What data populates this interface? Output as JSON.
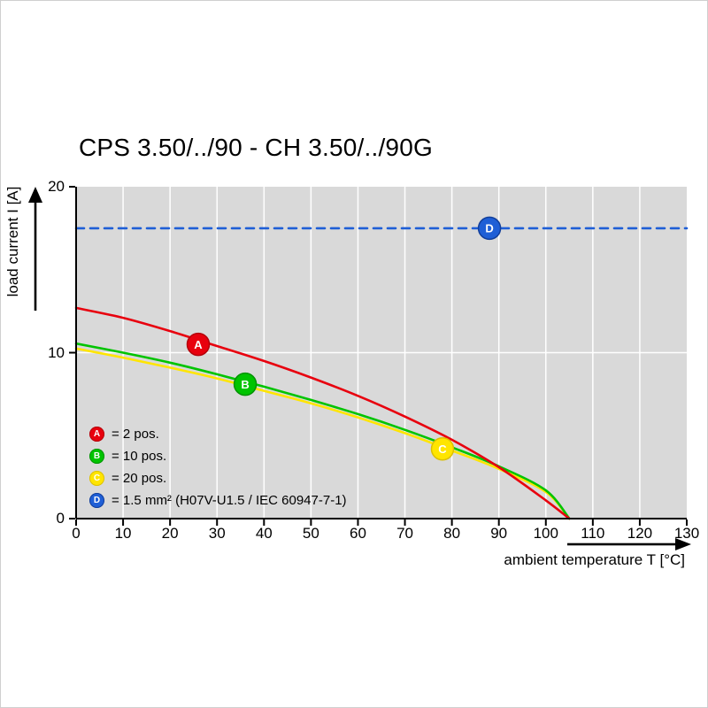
{
  "title": "CPS 3.50/../90 - CH 3.50/../90G",
  "axes": {
    "y_label": "load current I [A]",
    "x_label": "ambient temperature T [°C]"
  },
  "legend": [
    {
      "letter": "A",
      "label": "= 2 pos.",
      "color": "#e8000e",
      "stroke": "#b4000a"
    },
    {
      "letter": "B",
      "label": "= 10 pos.",
      "color": "#00c400",
      "stroke": "#009300"
    },
    {
      "letter": "C",
      "label": "= 20 pos.",
      "color": "#ffe500",
      "stroke": "#dcc000"
    },
    {
      "letter": "D",
      "label": "= 1.5 mm² (H07V-U1.5 / IEC 60947-7-1)",
      "color": "#1f5fd6",
      "stroke": "#123f9b"
    }
  ],
  "chart_data": {
    "type": "line",
    "title": "CPS 3.50/../90 - CH 3.50/../90G",
    "xlabel": "ambient temperature T [°C]",
    "ylabel": "load current I [A]",
    "xlim": [
      0,
      130
    ],
    "ylim": [
      0,
      20
    ],
    "x_ticks": [
      0,
      10,
      20,
      30,
      40,
      50,
      60,
      70,
      80,
      90,
      100,
      110,
      120,
      130
    ],
    "y_ticks": [
      0,
      10,
      20
    ],
    "grid": true,
    "plot_bg": "#d9d9d9",
    "grid_color": "#ffffff",
    "legend_position": "inside-bottom-left",
    "series": [
      {
        "name": "20 pos.",
        "color": "#ffe500",
        "points": [
          [
            0,
            10.25
          ],
          [
            10,
            9.7
          ],
          [
            20,
            9.1
          ],
          [
            30,
            8.45
          ],
          [
            40,
            7.7
          ],
          [
            50,
            6.95
          ],
          [
            60,
            6.1
          ],
          [
            70,
            5.15
          ],
          [
            80,
            4.1
          ],
          [
            90,
            3.0
          ],
          [
            100,
            1.6
          ],
          [
            105,
            0
          ]
        ]
      },
      {
        "name": "10 pos.",
        "color": "#00c400",
        "points": [
          [
            0,
            10.55
          ],
          [
            10,
            10.0
          ],
          [
            20,
            9.4
          ],
          [
            30,
            8.7
          ],
          [
            40,
            7.95
          ],
          [
            50,
            7.15
          ],
          [
            60,
            6.3
          ],
          [
            70,
            5.35
          ],
          [
            80,
            4.3
          ],
          [
            90,
            3.15
          ],
          [
            100,
            1.7
          ],
          [
            105,
            0
          ]
        ]
      },
      {
        "name": "2 pos.",
        "color": "#e8000e",
        "points": [
          [
            0,
            12.7
          ],
          [
            10,
            12.1
          ],
          [
            20,
            11.3
          ],
          [
            30,
            10.4
          ],
          [
            40,
            9.5
          ],
          [
            50,
            8.5
          ],
          [
            60,
            7.4
          ],
          [
            70,
            6.15
          ],
          [
            80,
            4.75
          ],
          [
            90,
            3.1
          ],
          [
            100,
            1.1
          ],
          [
            105,
            0
          ]
        ]
      },
      {
        "name": "1.5 mm² (H07V-U1.5 / IEC 60947-7-1)",
        "color": "#1f5fd6",
        "dash": true,
        "points": [
          [
            0,
            17.5
          ],
          [
            130,
            17.5
          ]
        ]
      }
    ],
    "markers": [
      {
        "letter": "A",
        "x": 26,
        "y": 10.5,
        "color": "#e8000e",
        "stroke": "#b4000a"
      },
      {
        "letter": "B",
        "x": 36,
        "y": 8.1,
        "color": "#00c400",
        "stroke": "#009300"
      },
      {
        "letter": "C",
        "x": 78,
        "y": 4.2,
        "color": "#ffe500",
        "stroke": "#dcc000"
      },
      {
        "letter": "D",
        "x": 88,
        "y": 17.5,
        "color": "#1f5fd6",
        "stroke": "#123f9b"
      }
    ]
  }
}
